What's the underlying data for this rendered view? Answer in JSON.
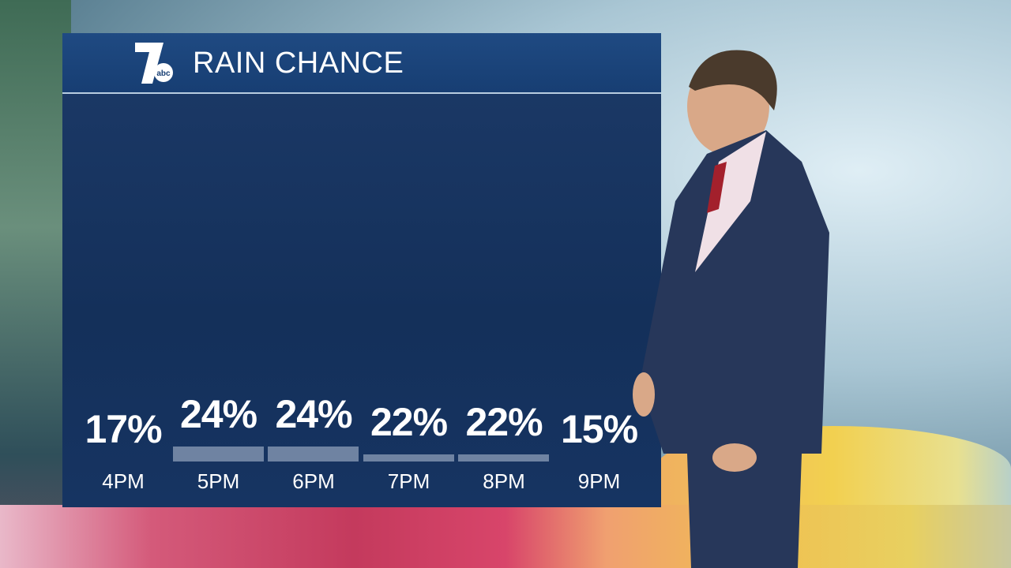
{
  "header": {
    "title": "RAIN CHANCE",
    "logo_text": "7 abc"
  },
  "colors": {
    "panel": "#14305a",
    "header": "#1f4a82",
    "bar": "#6f83a2",
    "text": "#ffffff"
  },
  "chart_data": {
    "type": "bar",
    "title": "RAIN CHANCE",
    "categories": [
      "4PM",
      "5PM",
      "6PM",
      "7PM",
      "8PM",
      "9PM"
    ],
    "values": [
      17,
      24,
      24,
      22,
      22,
      15
    ],
    "labels": [
      "17%",
      "24%",
      "24%",
      "22%",
      "22%",
      "15%"
    ],
    "unit": "%",
    "grid": false
  }
}
